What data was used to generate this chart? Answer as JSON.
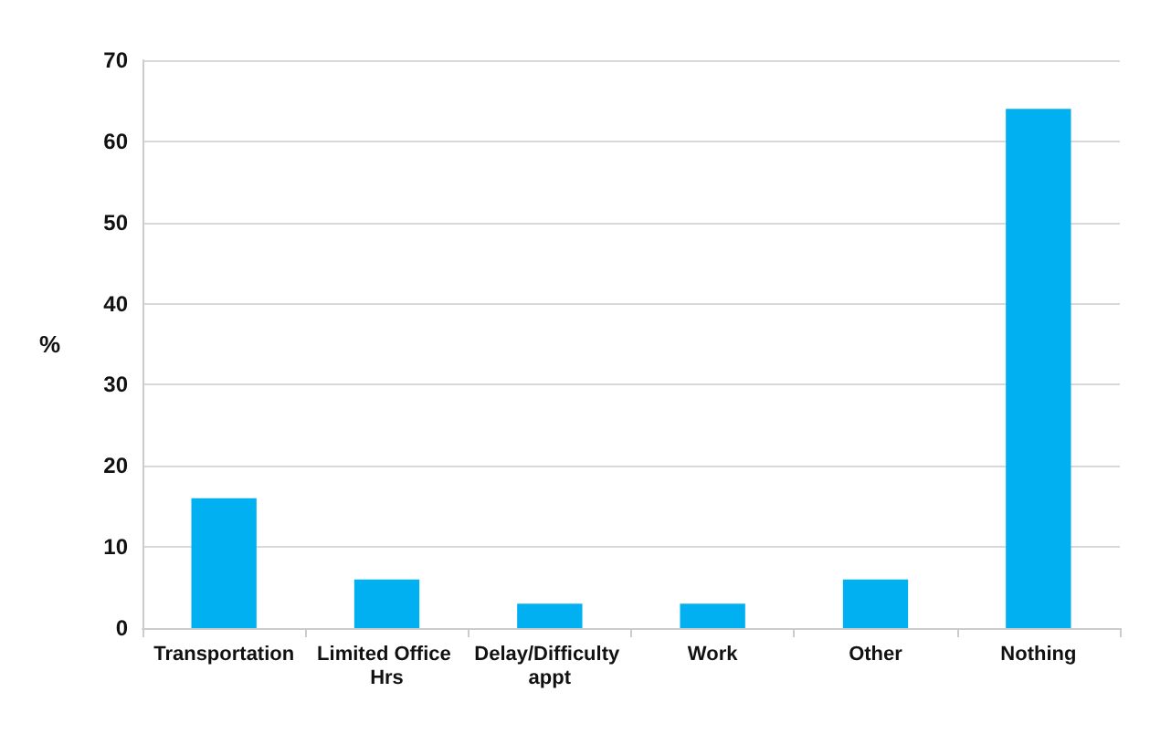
{
  "chart_data": {
    "type": "bar",
    "ylabel": "%",
    "categories": [
      "Transportation",
      "Limited Office Hrs",
      "Delay/Difficulty appt",
      "Work",
      "Other",
      "Nothing"
    ],
    "values": [
      16,
      6,
      3,
      3,
      6,
      64
    ],
    "color": "#00b0f0",
    "ylim": [
      0,
      70
    ],
    "yticks": [
      0,
      10,
      20,
      30,
      40,
      50,
      60,
      70
    ],
    "grid": "y"
  }
}
